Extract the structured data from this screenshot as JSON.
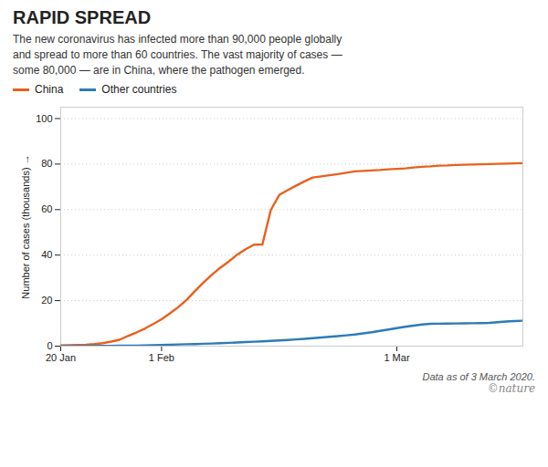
{
  "chart_data": {
    "type": "line",
    "title": "RAPID SPREAD",
    "subtitle": "The new coronavirus has infected more than 90,000 people globally\nand spread to more than 60 countries. The vast majority of cases —\nsome 80,000 — are in China, where the pathogen emerged.",
    "y_label": "Number of cases (thousands)",
    "annotations": [
      "Data as of 3 March 2020.",
      "©nature"
    ],
    "x": [
      0,
      1,
      2,
      3,
      4,
      5,
      6,
      7,
      8,
      9,
      10,
      11,
      12,
      13,
      14,
      15,
      16,
      17,
      18,
      19,
      20,
      21,
      22,
      23,
      24,
      25,
      26,
      27,
      28,
      29,
      30,
      31,
      32,
      33,
      34,
      35,
      36,
      37,
      38,
      39,
      40,
      41,
      42,
      43,
      44,
      45,
      46,
      47,
      48,
      49,
      50,
      51,
      52,
      53,
      54,
      55
    ],
    "series": [
      {
        "name": "China",
        "color": "#E8601C",
        "values": [
          0.28,
          0.44,
          0.55,
          0.64,
          0.92,
          1.32,
          2.0,
          2.8,
          4.5,
          6.0,
          7.7,
          9.7,
          11.8,
          14.4,
          17.2,
          20.4,
          24.3,
          28.0,
          31.4,
          34.5,
          37.2,
          40.2,
          42.6,
          44.6,
          44.7,
          59.8,
          66.4,
          68.5,
          70.5,
          72.4,
          74.1,
          74.6,
          75.1,
          75.6,
          76.2,
          76.8,
          77.0,
          77.2,
          77.4,
          77.7,
          77.9,
          78.1,
          78.5,
          78.8,
          79.0,
          79.3,
          79.4,
          79.6,
          79.7,
          79.8,
          79.9,
          80.0,
          80.1,
          80.2,
          80.3,
          80.4
        ]
      },
      {
        "name": "Other countries",
        "color": "#2B7BB9",
        "values": [
          0.04,
          0.05,
          0.06,
          0.07,
          0.08,
          0.1,
          0.14,
          0.18,
          0.22,
          0.27,
          0.35,
          0.44,
          0.56,
          0.65,
          0.75,
          0.84,
          0.93,
          1.05,
          1.15,
          1.3,
          1.45,
          1.6,
          1.78,
          1.96,
          2.1,
          2.3,
          2.5,
          2.72,
          2.95,
          3.2,
          3.5,
          3.82,
          4.1,
          4.4,
          4.74,
          5.1,
          5.6,
          6.1,
          6.7,
          7.3,
          7.9,
          8.5,
          9.0,
          9.5,
          9.8,
          9.85,
          9.9,
          9.95,
          10.0,
          10.05,
          10.1,
          10.2,
          10.5,
          10.8,
          11.0,
          11.2
        ]
      }
    ],
    "xlim": [
      0,
      55
    ],
    "ylim": [
      0,
      105
    ],
    "xticks": [
      {
        "value": 0,
        "label": "20 Jan"
      },
      {
        "value": 12,
        "label": "1 Feb"
      },
      {
        "value": 40,
        "label": "1 Mar"
      }
    ],
    "yticks": [
      0,
      20,
      40,
      60,
      80,
      100
    ],
    "grid": true,
    "legend": "top"
  }
}
